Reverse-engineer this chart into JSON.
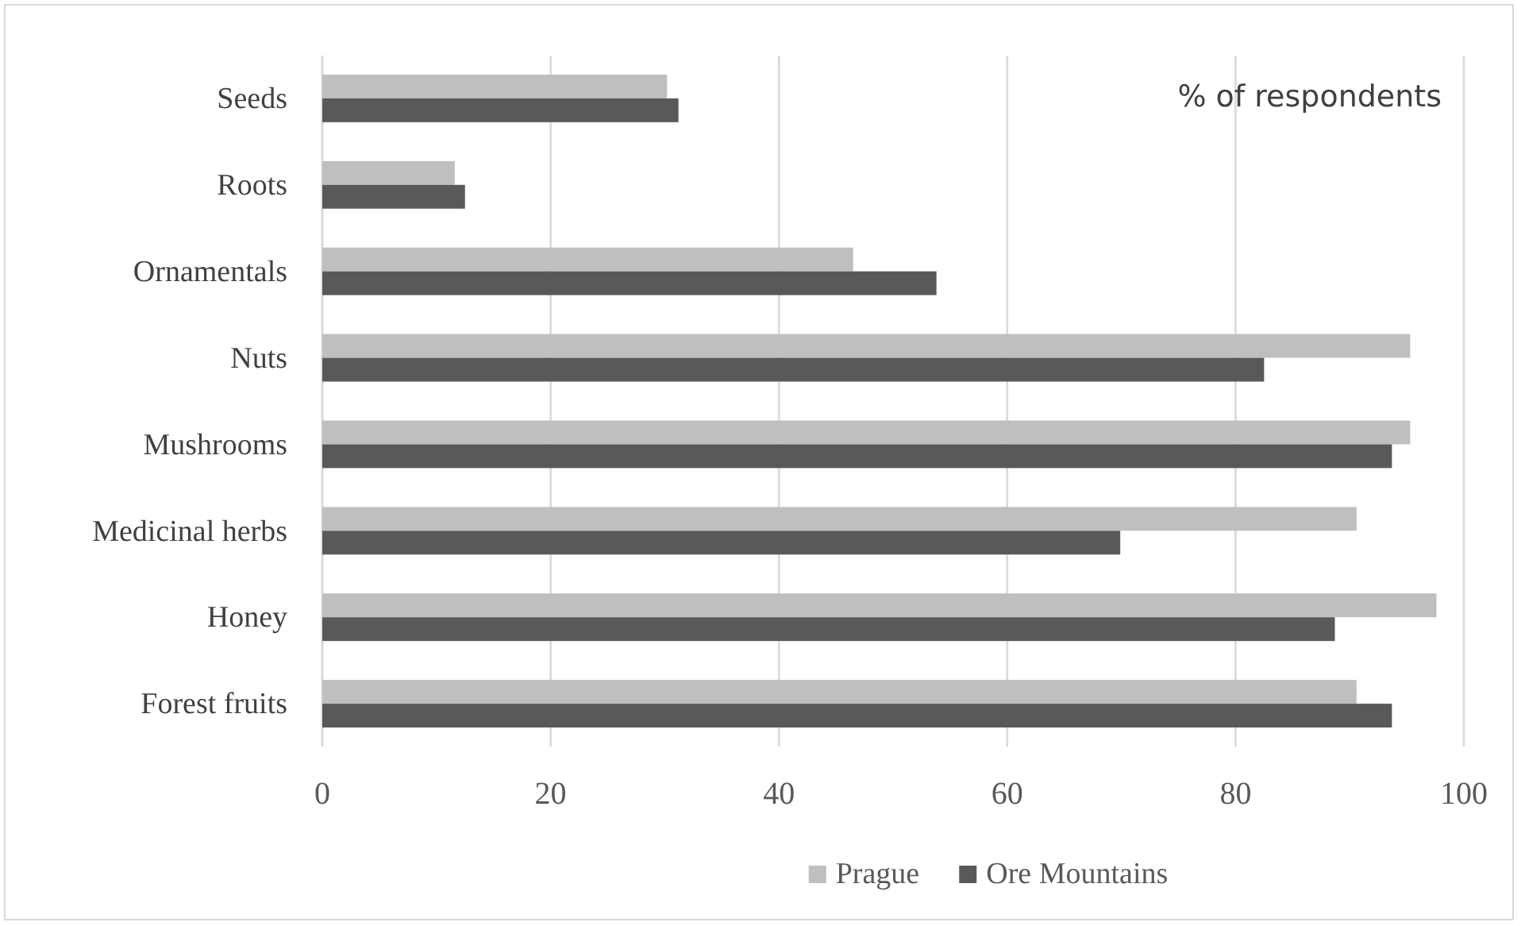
{
  "chart_data": {
    "type": "bar",
    "orientation": "horizontal",
    "categories": [
      "Seeds",
      "Roots",
      "Ornamentals",
      "Nuts",
      "Mushrooms",
      "Medicinal herbs",
      "Honey",
      "Forest fruits"
    ],
    "series": [
      {
        "name": "Prague",
        "color": "#bfbfbf",
        "values": [
          30.2,
          11.6,
          46.5,
          95.3,
          95.3,
          90.6,
          97.6,
          90.6
        ]
      },
      {
        "name": "Ore Mountains",
        "color": "#595959",
        "values": [
          31.2,
          12.5,
          53.8,
          82.5,
          93.7,
          69.9,
          88.7,
          93.7
        ]
      }
    ],
    "xlim": [
      0,
      100
    ],
    "xticks": [
      0,
      20,
      40,
      60,
      80,
      100
    ],
    "grid": "x",
    "legend": "bottom",
    "annotations": [
      "% of respondents"
    ]
  }
}
